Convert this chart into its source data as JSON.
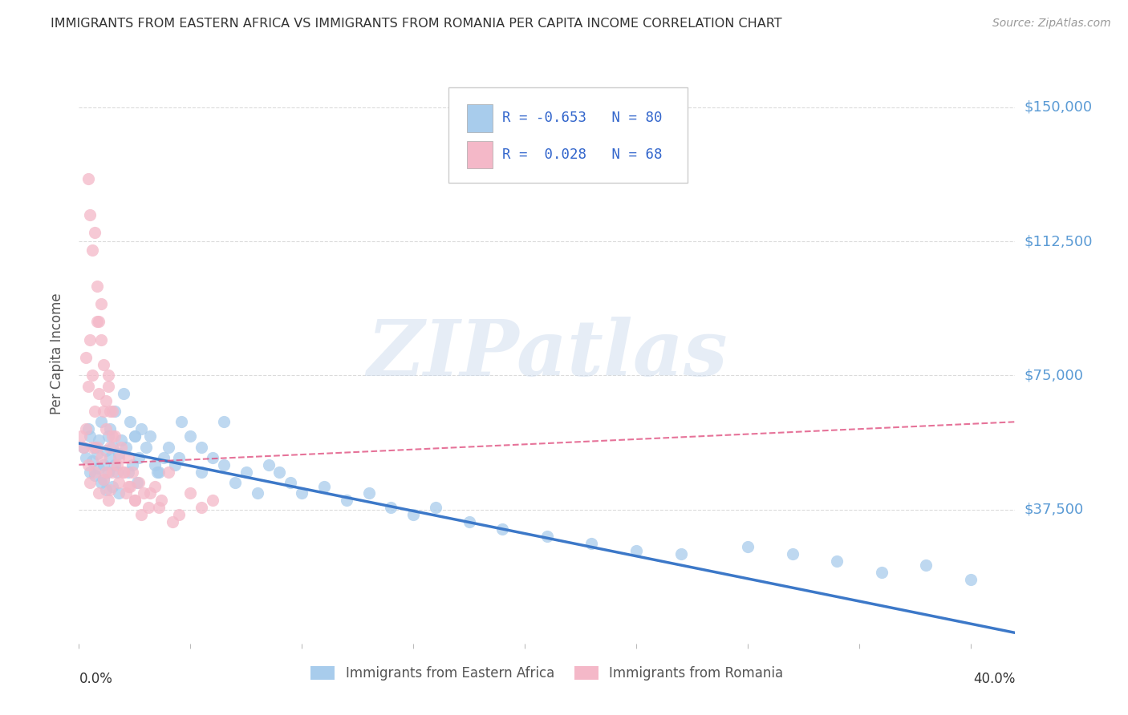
{
  "title": "IMMIGRANTS FROM EASTERN AFRICA VS IMMIGRANTS FROM ROMANIA PER CAPITA INCOME CORRELATION CHART",
  "source_text": "Source: ZipAtlas.com",
  "ylabel": "Per Capita Income",
  "xlabel_bottom_left": "0.0%",
  "xlabel_bottom_right": "40.0%",
  "legend_labels": [
    "Immigrants from Eastern Africa",
    "Immigrants from Romania"
  ],
  "blue_color": "#a8ccec",
  "pink_color": "#f4b8c8",
  "blue_line_color": "#3c78c8",
  "pink_line_color": "#e05080",
  "title_color": "#333333",
  "source_color": "#999999",
  "axis_label_color": "#5b9bd5",
  "ytick_labels": [
    "$37,500",
    "$75,000",
    "$112,500",
    "$150,000"
  ],
  "ytick_values": [
    37500,
    75000,
    112500,
    150000
  ],
  "ylim": [
    0,
    162000
  ],
  "xlim": [
    0.0,
    0.42
  ],
  "watermark": "ZIPatlas",
  "blue_scatter_x": [
    0.002,
    0.003,
    0.004,
    0.005,
    0.005,
    0.006,
    0.007,
    0.007,
    0.008,
    0.009,
    0.009,
    0.01,
    0.01,
    0.011,
    0.011,
    0.012,
    0.012,
    0.013,
    0.013,
    0.014,
    0.014,
    0.015,
    0.015,
    0.016,
    0.016,
    0.017,
    0.018,
    0.018,
    0.019,
    0.02,
    0.021,
    0.022,
    0.023,
    0.024,
    0.025,
    0.026,
    0.027,
    0.028,
    0.03,
    0.032,
    0.034,
    0.036,
    0.038,
    0.04,
    0.043,
    0.046,
    0.05,
    0.055,
    0.06,
    0.065,
    0.07,
    0.075,
    0.08,
    0.085,
    0.09,
    0.095,
    0.1,
    0.11,
    0.12,
    0.13,
    0.14,
    0.15,
    0.16,
    0.175,
    0.19,
    0.21,
    0.23,
    0.25,
    0.27,
    0.3,
    0.32,
    0.34,
    0.36,
    0.38,
    0.4,
    0.065,
    0.055,
    0.045,
    0.035,
    0.025
  ],
  "blue_scatter_y": [
    55000,
    52000,
    60000,
    48000,
    58000,
    51000,
    47000,
    55000,
    53000,
    49000,
    57000,
    45000,
    62000,
    50000,
    46000,
    54000,
    43000,
    58000,
    48000,
    52000,
    60000,
    55000,
    44000,
    50000,
    65000,
    48000,
    53000,
    42000,
    57000,
    70000,
    55000,
    48000,
    62000,
    50000,
    58000,
    45000,
    52000,
    60000,
    55000,
    58000,
    50000,
    48000,
    52000,
    55000,
    50000,
    62000,
    58000,
    48000,
    52000,
    50000,
    45000,
    48000,
    42000,
    50000,
    48000,
    45000,
    42000,
    44000,
    40000,
    42000,
    38000,
    36000,
    38000,
    34000,
    32000,
    30000,
    28000,
    26000,
    25000,
    27000,
    25000,
    23000,
    20000,
    22000,
    18000,
    62000,
    55000,
    52000,
    48000,
    58000
  ],
  "pink_scatter_x": [
    0.001,
    0.002,
    0.003,
    0.003,
    0.004,
    0.004,
    0.005,
    0.005,
    0.006,
    0.006,
    0.007,
    0.007,
    0.008,
    0.008,
    0.009,
    0.009,
    0.01,
    0.01,
    0.011,
    0.011,
    0.012,
    0.012,
    0.013,
    0.013,
    0.014,
    0.014,
    0.015,
    0.015,
    0.016,
    0.017,
    0.018,
    0.019,
    0.02,
    0.021,
    0.022,
    0.023,
    0.024,
    0.025,
    0.027,
    0.029,
    0.031,
    0.034,
    0.037,
    0.04,
    0.045,
    0.05,
    0.055,
    0.06,
    0.004,
    0.005,
    0.006,
    0.007,
    0.008,
    0.009,
    0.01,
    0.011,
    0.012,
    0.013,
    0.014,
    0.015,
    0.018,
    0.02,
    0.022,
    0.025,
    0.028,
    0.032,
    0.036,
    0.042
  ],
  "pink_scatter_y": [
    58000,
    55000,
    80000,
    60000,
    72000,
    50000,
    85000,
    45000,
    75000,
    55000,
    65000,
    48000,
    90000,
    55000,
    70000,
    42000,
    95000,
    52000,
    65000,
    46000,
    60000,
    48000,
    75000,
    40000,
    55000,
    43000,
    65000,
    48000,
    58000,
    50000,
    45000,
    55000,
    48000,
    42000,
    52000,
    44000,
    48000,
    40000,
    45000,
    42000,
    38000,
    44000,
    40000,
    48000,
    36000,
    42000,
    38000,
    40000,
    130000,
    120000,
    110000,
    115000,
    100000,
    90000,
    85000,
    78000,
    68000,
    72000,
    65000,
    58000,
    52000,
    48000,
    44000,
    40000,
    36000,
    42000,
    38000,
    34000
  ],
  "blue_line_x": [
    0.0,
    0.42
  ],
  "blue_line_y": [
    56000,
    3000
  ],
  "pink_line_x": [
    0.0,
    0.42
  ],
  "pink_line_y": [
    50000,
    62000
  ],
  "background_color": "#ffffff",
  "grid_color": "#cccccc",
  "legend_text_color": "#3366cc",
  "xtick_positions": [
    0.0,
    0.05,
    0.1,
    0.15,
    0.2,
    0.25,
    0.3,
    0.35,
    0.4
  ]
}
